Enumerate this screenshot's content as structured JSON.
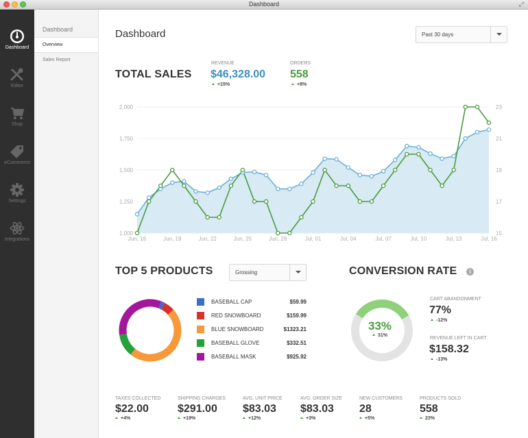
{
  "window": {
    "title": "Dashboard"
  },
  "iconbar": {
    "items": [
      {
        "label": "Dashboard",
        "icon": "dashboard-icon"
      },
      {
        "label": "Editor",
        "icon": "tools-icon"
      },
      {
        "label": "Shop",
        "icon": "cart-icon"
      },
      {
        "label": "eCommerce",
        "icon": "tag-icon"
      },
      {
        "label": "Settings",
        "icon": "gear-icon"
      },
      {
        "label": "Integrations",
        "icon": "atom-icon"
      }
    ]
  },
  "subnav": {
    "heading": "Dashboard",
    "items": [
      "Overview",
      "Sales Report"
    ]
  },
  "header": {
    "title": "Dashboard",
    "range": "Past 30 days"
  },
  "total_sales": {
    "title": "TOTAL SALES",
    "revenue_label": "REVENUE",
    "revenue": "$46,328.00",
    "revenue_delta": "+15%",
    "orders_label": "ORDERS",
    "orders": "558",
    "orders_delta": "+8%"
  },
  "chart_data": {
    "type": "line",
    "x": [
      "Jun, 16",
      "Jun, 17",
      "Jun, 18",
      "Jun, 19",
      "Jun, 20",
      "Jun, 21",
      "Jun, 22",
      "Jun, 23",
      "Jun, 24",
      "Jun, 25",
      "Jun, 26",
      "Jun, 27",
      "Jun, 28",
      "Jun, 29",
      "Jun, 30",
      "Jul, 01",
      "Jul, 02",
      "Jul, 03",
      "Jul, 04",
      "Jul, 05",
      "Jul, 06",
      "Jul, 07",
      "Jul, 08",
      "Jul, 09",
      "Jul, 10",
      "Jul, 11",
      "Jul, 12",
      "Jul, 13",
      "Jul, 14",
      "Jul, 15",
      "Jul, 16"
    ],
    "xticks": [
      "Jun, 16",
      "Jun, 19",
      "Jun, 22",
      "Jun, 25",
      "Jun, 28",
      "Jul, 01",
      "Jul, 04",
      "Jul, 07",
      "Jul, 10",
      "Jul, 13",
      "Jul, 16"
    ],
    "y_left_ticks": [
      "1,000",
      "1,250",
      "1,500",
      "1,750",
      "2,000"
    ],
    "y_right_ticks": [
      "15",
      "17",
      "19",
      "21",
      "23"
    ],
    "ylim_left": [
      1000,
      2000
    ],
    "ylim_right": [
      15,
      23
    ],
    "series": [
      {
        "axis": "left",
        "color": "#6ab0d6",
        "fill": "#d8eaf4",
        "values": [
          1150,
          1280,
          1350,
          1400,
          1410,
          1330,
          1320,
          1360,
          1430,
          1480,
          1485,
          1460,
          1350,
          1350,
          1390,
          1480,
          1590,
          1585,
          1520,
          1460,
          1450,
          1490,
          1580,
          1690,
          1680,
          1630,
          1590,
          1610,
          1750,
          1800,
          1820
        ]
      },
      {
        "axis": "right",
        "color": "#4a9a3e",
        "values": [
          15,
          17,
          18,
          19,
          18,
          17,
          16,
          16,
          18,
          19,
          17,
          17,
          15,
          15,
          16,
          17,
          19,
          18,
          18,
          17,
          17,
          18,
          19,
          20,
          20,
          19,
          18,
          19,
          23,
          23,
          22
        ]
      }
    ]
  },
  "top_products": {
    "title": "TOP 5 PRODUCTS",
    "filter": "Grossing",
    "items": [
      {
        "name": "BASEBALL CAP",
        "value": "$59.99",
        "amount": 59.99,
        "color": "#3a6fc9"
      },
      {
        "name": "RED SNOWBOARD",
        "value": "$159.99",
        "amount": 159.99,
        "color": "#d9312b"
      },
      {
        "name": "BLUE SNOWBOARD",
        "value": "$1323.21",
        "amount": 1323.21,
        "color": "#f7983a"
      },
      {
        "name": "BASEBALL GLOVE",
        "value": "$332.51",
        "amount": 332.51,
        "color": "#23a23a"
      },
      {
        "name": "BASEBALL MASK",
        "value": "$925.92",
        "amount": 925.92,
        "color": "#a2179c"
      }
    ]
  },
  "conversion": {
    "title": "CONVERSION RATE",
    "percent": "33%",
    "fraction": 0.33,
    "delta": "31%",
    "cart_label": "CART ABANDONMENT",
    "cart_value": "77%",
    "cart_delta": "-12%",
    "left_label": "REVENUE LEFT IN CART",
    "left_value": "$158.32",
    "left_delta": "-13%"
  },
  "stats": [
    {
      "label": "TAXES COLLECTED",
      "value": "$22.00",
      "delta": "+4%"
    },
    {
      "label": "SHIPPING CHARGES",
      "value": "$291.00",
      "delta": "+19%"
    },
    {
      "label": "AVG. UNIT PRICE",
      "value": "$83.03",
      "delta": "+12%"
    },
    {
      "label": "AVG. ORDER SIZE",
      "value": "$83.03",
      "delta": "+3%"
    },
    {
      "label": "NEW CUSTOMERS",
      "value": "28",
      "delta": "+5%"
    },
    {
      "label": "PRODUCTS SOLD",
      "value": "558",
      "delta": "23%"
    }
  ]
}
